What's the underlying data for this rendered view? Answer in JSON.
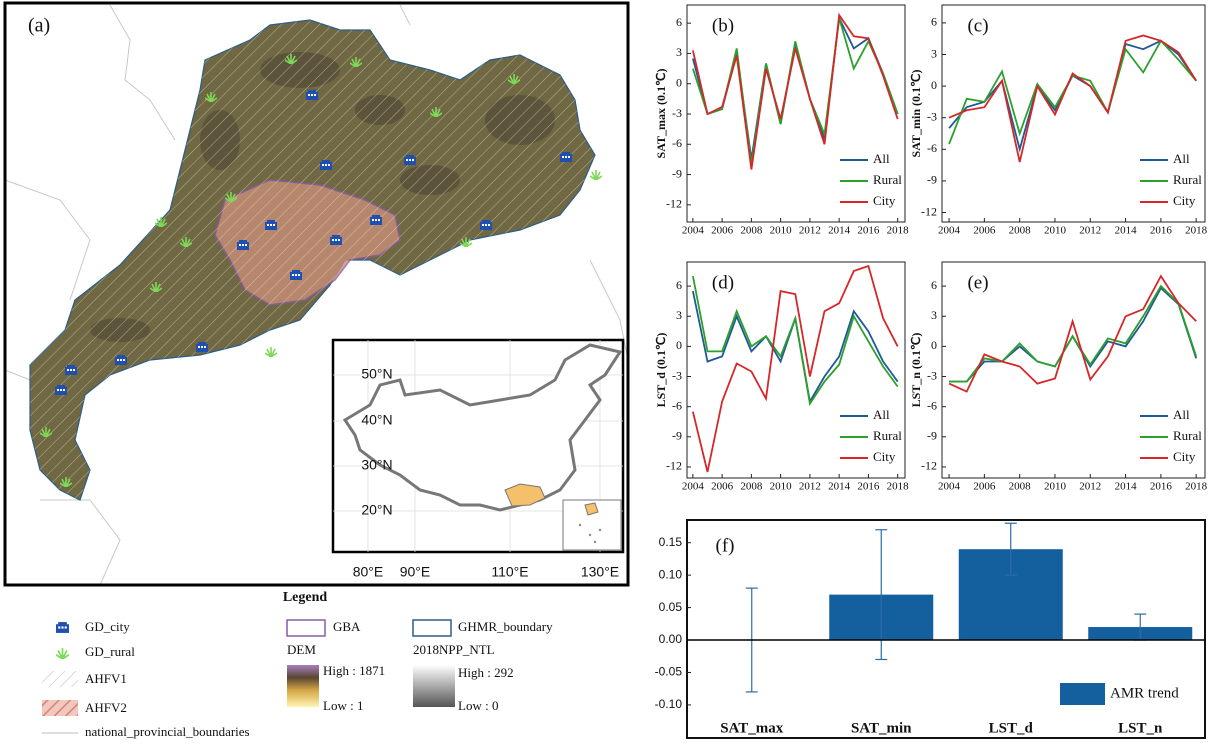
{
  "map": {
    "panel_label": "(a)",
    "inset": {
      "lat_labels": [
        "50°N",
        "40°N",
        "30°N",
        "20°N"
      ],
      "lon_labels": [
        "80°E",
        "90°E",
        "110°E",
        "130°E"
      ]
    },
    "legend": {
      "title": "Legend",
      "gd_city": "GD_city",
      "gd_rural": "GD_rural",
      "ahfv1": "AHFV1",
      "ahfv2": "AHFV2",
      "boundaries": "national_provincial_boundaries",
      "gba": "GBA",
      "ghmr": "GHMR_boundary",
      "dem": "DEM",
      "dem_high": "High : 1871",
      "dem_low": "Low : 1",
      "ntl": "2018NPP_NTL",
      "ntl_high": "High : 292",
      "ntl_low": "Low : 0"
    }
  },
  "chart_data": [
    {
      "type": "line",
      "panel_label": "(b)",
      "y_label": "SAT_max (0.1℃)",
      "x": [
        2004,
        2005,
        2006,
        2007,
        2008,
        2009,
        2010,
        2011,
        2012,
        2013,
        2014,
        2015,
        2016,
        2017,
        2018
      ],
      "xlim": [
        2003.6,
        2018.5
      ],
      "xticks": [
        2004,
        2006,
        2008,
        2010,
        2012,
        2014,
        2016,
        2018
      ],
      "ylim": [
        -13.7,
        7.8
      ],
      "yticks": [
        6,
        3,
        0,
        -3,
        -6,
        -9,
        -12
      ],
      "legend": "lower right",
      "series": [
        {
          "name": "All",
          "color": "#1f5a96",
          "values": [
            2.5,
            -3,
            -2.5,
            3,
            -7.5,
            2,
            -4,
            4,
            -1.5,
            -5.5,
            6.5,
            3.5,
            4.5,
            1,
            -3
          ]
        },
        {
          "name": "Rural",
          "color": "#2ca02c",
          "values": [
            1.5,
            -3,
            -2.5,
            3.5,
            -8,
            2,
            -4,
            4.2,
            -1.5,
            -5,
            6.5,
            1.5,
            4.2,
            1,
            -3
          ]
        },
        {
          "name": "City",
          "color": "#d62728",
          "values": [
            3.3,
            -3,
            -2.3,
            2.8,
            -8.5,
            1.5,
            -3.5,
            3.5,
            -1.5,
            -6,
            6.8,
            4.7,
            4.5,
            0.8,
            -3.5
          ]
        }
      ]
    },
    {
      "type": "line",
      "panel_label": "(c)",
      "y_label": "SAT_min (0.1℃)",
      "x": [
        2004,
        2005,
        2006,
        2007,
        2008,
        2009,
        2010,
        2011,
        2012,
        2013,
        2014,
        2015,
        2016,
        2017,
        2018
      ],
      "xlim": [
        2003.6,
        2018.5
      ],
      "xticks": [
        2004,
        2006,
        2008,
        2010,
        2012,
        2014,
        2016,
        2018
      ],
      "ylim": [
        -12.9,
        7.7
      ],
      "yticks": [
        6,
        3,
        0,
        -3,
        -6,
        -9,
        -12
      ],
      "legend": "lower right",
      "series": [
        {
          "name": "All",
          "color": "#1f5a96",
          "values": [
            -4,
            -2,
            -1.5,
            0.5,
            -6,
            0,
            -2.3,
            1,
            0,
            -2.5,
            4,
            3.5,
            4.3,
            3,
            0.5
          ]
        },
        {
          "name": "Rural",
          "color": "#2ca02c",
          "values": [
            -5.5,
            -1.2,
            -1.5,
            1.4,
            -4.5,
            0.2,
            -2,
            1,
            0.5,
            -2.5,
            3.5,
            1.3,
            4.3,
            2.5,
            0.5
          ]
        },
        {
          "name": "City",
          "color": "#d62728",
          "values": [
            -3,
            -2.3,
            -2,
            0.5,
            -7.2,
            0,
            -2.7,
            1.2,
            0,
            -2.5,
            4.3,
            4.8,
            4.3,
            3.2,
            0.5
          ]
        }
      ]
    },
    {
      "type": "line",
      "panel_label": "(d)",
      "y_label": "LST_d (0.1℃)",
      "x": [
        2004,
        2005,
        2006,
        2007,
        2008,
        2009,
        2010,
        2011,
        2012,
        2013,
        2014,
        2015,
        2016,
        2017,
        2018
      ],
      "xlim": [
        2003.6,
        2018.5
      ],
      "xticks": [
        2004,
        2006,
        2008,
        2010,
        2012,
        2014,
        2016,
        2018
      ],
      "ylim": [
        -13.1,
        8.4
      ],
      "yticks": [
        6,
        3,
        0,
        -3,
        -6,
        -9,
        -12
      ],
      "legend": "lower right",
      "series": [
        {
          "name": "All",
          "color": "#1f5a96",
          "values": [
            5.5,
            -1.5,
            -1,
            3,
            -0.5,
            1,
            -1.5,
            2.8,
            -5.5,
            -3,
            -1,
            3.5,
            1.5,
            -1.5,
            -3.5
          ]
        },
        {
          "name": "Rural",
          "color": "#2ca02c",
          "values": [
            7,
            -0.5,
            -0.5,
            3.5,
            0,
            1,
            -1,
            2.8,
            -5.7,
            -3.5,
            -1.8,
            3,
            0.5,
            -2,
            -4
          ]
        },
        {
          "name": "City",
          "color": "#d62728",
          "values": [
            -6.5,
            -12.5,
            -5.5,
            -1.7,
            -2.5,
            -5.2,
            5.5,
            5.2,
            -3,
            3.5,
            4.3,
            7.5,
            8,
            2.8,
            0
          ]
        }
      ]
    },
    {
      "type": "line",
      "panel_label": "(e)",
      "y_label": "LST_n (0.1℃)",
      "x": [
        2004,
        2005,
        2006,
        2007,
        2008,
        2009,
        2010,
        2011,
        2012,
        2013,
        2014,
        2015,
        2016,
        2017,
        2018
      ],
      "xlim": [
        2003.6,
        2018.5
      ],
      "xticks": [
        2004,
        2006,
        2008,
        2010,
        2012,
        2014,
        2016,
        2018
      ],
      "ylim": [
        -13.1,
        8.4
      ],
      "yticks": [
        6,
        3,
        0,
        -3,
        -6,
        -9,
        -12
      ],
      "legend": "lower right",
      "series": [
        {
          "name": "All",
          "color": "#1f5a96",
          "values": [
            -3.5,
            -3.5,
            -1.5,
            -1.5,
            0,
            -1.5,
            -2,
            1,
            -2,
            0.5,
            0,
            2.5,
            5.8,
            4.2,
            -1.2
          ]
        },
        {
          "name": "Rural",
          "color": "#2ca02c",
          "values": [
            -3.5,
            -3.5,
            -1.2,
            -1.5,
            0.3,
            -1.5,
            -2,
            1,
            -1.8,
            0.8,
            0.3,
            3,
            6,
            4.3,
            -1
          ]
        },
        {
          "name": "City",
          "color": "#d62728",
          "values": [
            -3.7,
            -4.5,
            -0.8,
            -1.5,
            -2,
            -3.7,
            -3.2,
            2.5,
            -3.3,
            -1,
            3,
            3.7,
            7,
            4.3,
            2.5
          ]
        }
      ]
    },
    {
      "type": "bar",
      "panel_label": "(f)",
      "categories": [
        "SAT_max",
        "SAT_min",
        "LST_d",
        "LST_n"
      ],
      "ylim": [
        -0.151,
        0.185
      ],
      "yticks": [
        0.15,
        {
          "value": 0.1,
          "label": "0.10"
        },
        0.05,
        {
          "value": 0,
          "label": "0.00"
        },
        -0.05,
        {
          "value": -0.1,
          "label": "-0.10"
        }
      ],
      "legend": "lower right",
      "series": [
        {
          "name": "AMR trend",
          "color": "#14609f",
          "values": [
            0,
            0.07,
            0.14,
            0.02
          ],
          "errors": [
            0.08,
            0.1,
            0.04,
            0.02
          ]
        }
      ]
    }
  ]
}
